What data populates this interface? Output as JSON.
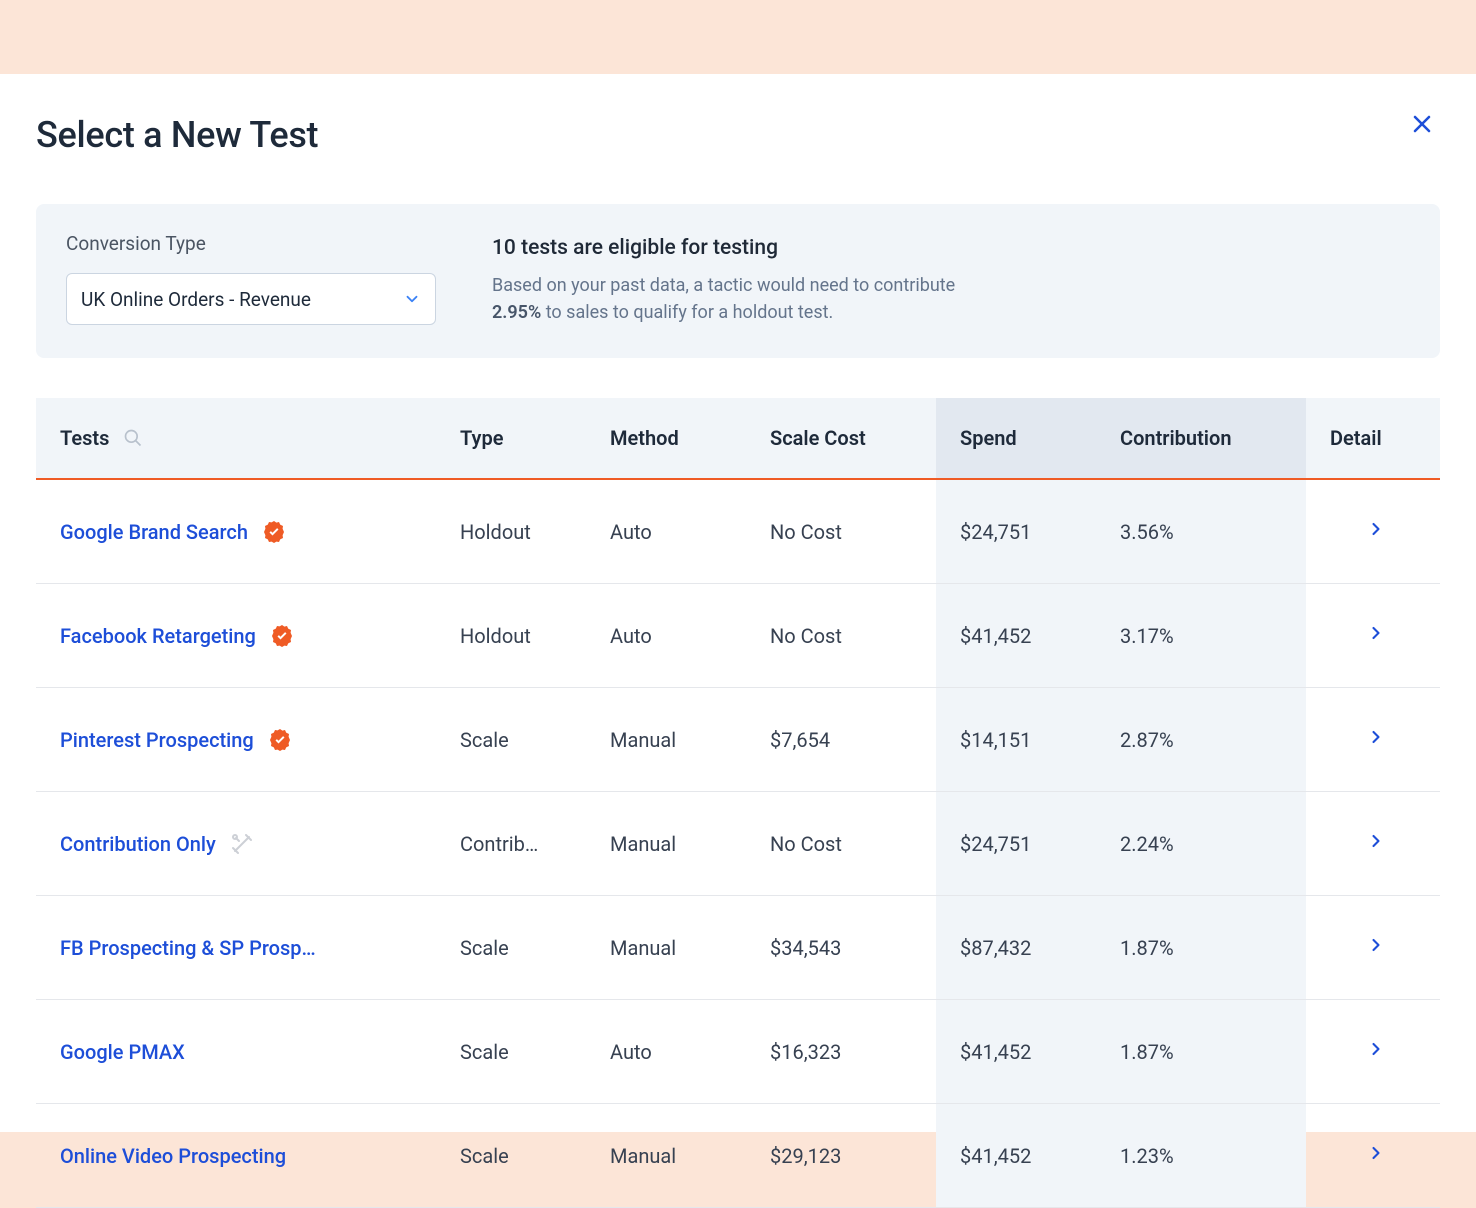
{
  "colors": {
    "page_bg": "#fce5d7",
    "modal_bg": "#ffffff",
    "panel_bg": "#f1f5f9",
    "header_text": "#1e2a3a",
    "muted_text": "#64748b",
    "body_text": "#374151",
    "link_text": "#1d4ed8",
    "accent_orange": "#ef5b25",
    "border": "#e5e7eb",
    "select_border": "#cbd5e1",
    "shaded_col_header": "#e2e8f0",
    "shaded_col_body": "#f1f5f9",
    "close_icon": "#1d4ed8",
    "chevron_color": "#3b82f6",
    "badge_color": "#ef5b25",
    "tools_color": "#9ca3af"
  },
  "header": {
    "title": "Select a New Test"
  },
  "info": {
    "conversion_label": "Conversion Type",
    "conversion_value": "UK Online Orders - Revenue",
    "eligible_title": "10 tests are eligible for testing",
    "eligible_desc_1": "Based on your past data, a tactic would need to contribute ",
    "eligible_pct": "2.95%",
    "eligible_desc_2": " to sales to qualify for a holdout test."
  },
  "table": {
    "columns": {
      "tests": "Tests",
      "type": "Type",
      "method": "Method",
      "scale_cost": "Scale Cost",
      "spend": "Spend",
      "contribution": "Contribution",
      "detail": "Detail"
    },
    "rows": [
      {
        "name": "Google Brand Search",
        "icon": "verified",
        "type": "Holdout",
        "method": "Auto",
        "scale_cost": "No Cost",
        "spend": "$24,751",
        "contribution": "3.56%"
      },
      {
        "name": "Facebook Retargeting",
        "icon": "verified",
        "type": "Holdout",
        "method": "Auto",
        "scale_cost": "No Cost",
        "spend": "$41,452",
        "contribution": "3.17%"
      },
      {
        "name": "Pinterest Prospecting",
        "icon": "verified",
        "type": "Scale",
        "method": "Manual",
        "scale_cost": "$7,654",
        "spend": "$14,151",
        "contribution": "2.87%"
      },
      {
        "name": "Contribution Only",
        "icon": "tools",
        "type": "Contrib…",
        "method": "Manual",
        "scale_cost": "No Cost",
        "spend": "$24,751",
        "contribution": "2.24%"
      },
      {
        "name": "FB Prospecting & SP Prosp…",
        "icon": "none",
        "type": "Scale",
        "method": "Manual",
        "scale_cost": "$34,543",
        "spend": "$87,432",
        "contribution": "1.87%"
      },
      {
        "name": "Google PMAX",
        "icon": "none",
        "type": "Scale",
        "method": "Auto",
        "scale_cost": "$16,323",
        "spend": "$41,452",
        "contribution": "1.87%"
      },
      {
        "name": "Online Video Prospecting",
        "icon": "none",
        "type": "Scale",
        "method": "Manual",
        "scale_cost": "$29,123",
        "spend": "$41,452",
        "contribution": "1.23%"
      }
    ]
  }
}
